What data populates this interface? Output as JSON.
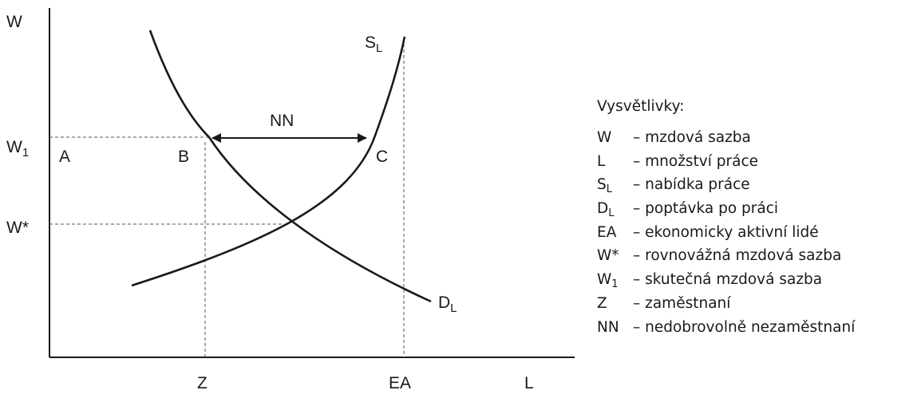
{
  "axes": {
    "y_label": "W",
    "x_label": "L",
    "y_ticks": [
      {
        "main": "W",
        "sub": "1"
      },
      {
        "main": "W*",
        "sub": ""
      }
    ],
    "x_ticks": [
      "Z",
      "EA"
    ]
  },
  "curves": {
    "supply": {
      "main": "S",
      "sub": "L"
    },
    "demand": {
      "main": "D",
      "sub": "L"
    }
  },
  "points": [
    "A",
    "B",
    "C"
  ],
  "gap_label": "NN",
  "legend": {
    "title": "Vysvětlivky:",
    "items": [
      {
        "sym": "W",
        "sub": "",
        "desc": "– mzdová sazba"
      },
      {
        "sym": "L",
        "sub": "",
        "desc": "– množství práce"
      },
      {
        "sym": "S",
        "sub": "L",
        "desc": "– nabídka práce"
      },
      {
        "sym": "D",
        "sub": "L",
        "desc": "– poptávka po práci"
      },
      {
        "sym": "EA",
        "sub": "",
        "desc": "– ekonomicky aktivní lidé"
      },
      {
        "sym": "W*",
        "sub": "",
        "desc": "– rovnovážná mzdová sazba"
      },
      {
        "sym": "W",
        "sub": "1",
        "desc": "– skutečná mzdová sazba"
      },
      {
        "sym": "Z",
        "sub": "",
        "desc": "– zaměstnaní"
      },
      {
        "sym": "NN",
        "sub": "",
        "desc": "– nedobrovolně nezaměstnaní"
      }
    ]
  }
}
